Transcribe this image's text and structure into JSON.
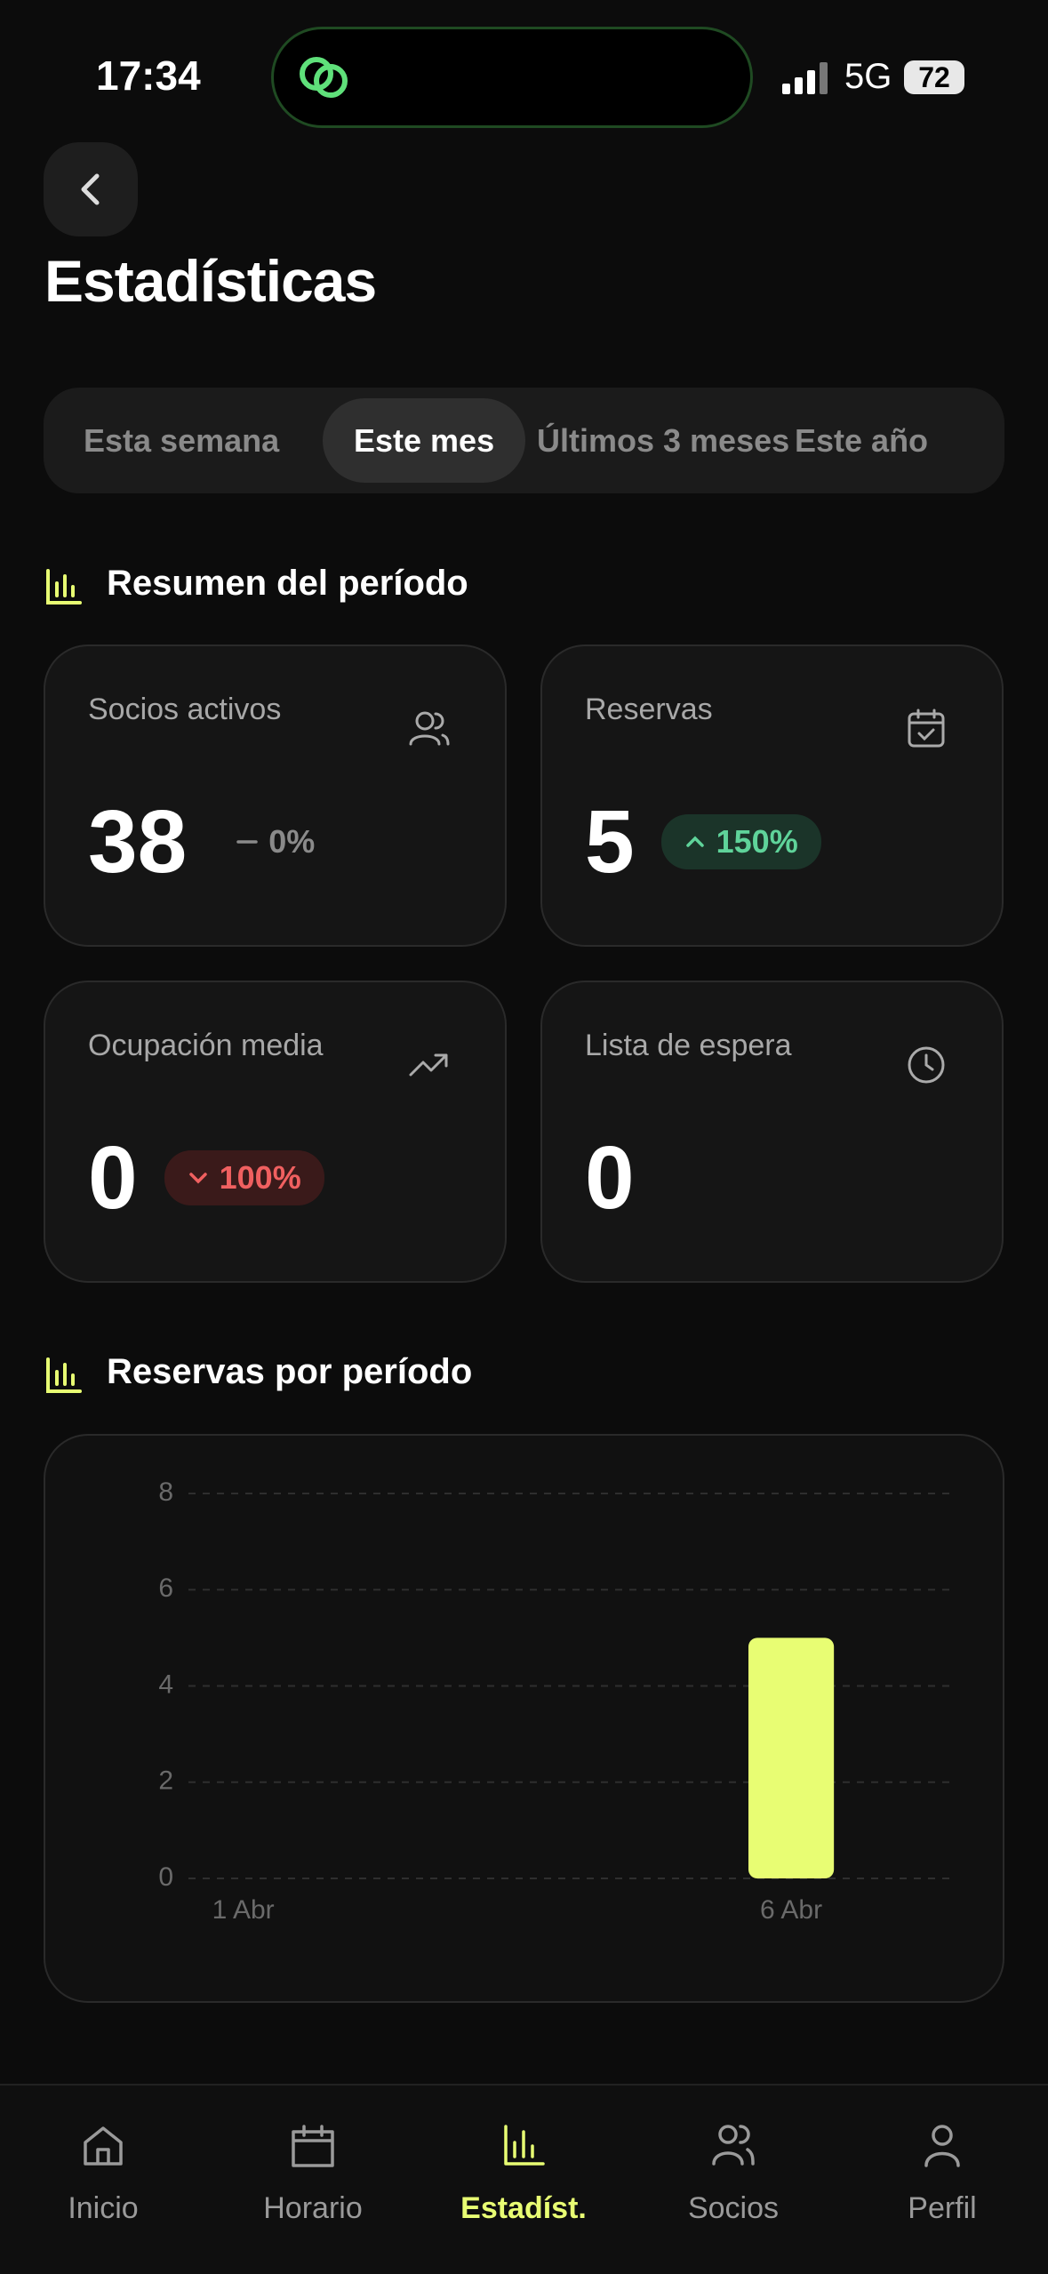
{
  "status": {
    "time": "17:34",
    "network": "5G",
    "battery": "72"
  },
  "header": {
    "title": "Estadísticas"
  },
  "tabs": {
    "items": [
      "Esta semana",
      "Este mes",
      "Últimos 3 meses",
      "Este año"
    ],
    "selected": 1
  },
  "summary": {
    "title": "Resumen del período",
    "cards": [
      {
        "label": "Socios activos",
        "value": "38",
        "change": "0%",
        "trend": "flat"
      },
      {
        "label": "Reservas",
        "value": "5",
        "change": "150%",
        "trend": "up"
      },
      {
        "label": "Ocupación media",
        "value": "0",
        "change": "100%",
        "trend": "down"
      },
      {
        "label": "Lista de espera",
        "value": "0"
      }
    ]
  },
  "chart_section": {
    "title": "Reservas por período"
  },
  "chart_data": {
    "type": "bar",
    "categories": [
      "1 Abr",
      null,
      null,
      null,
      null,
      "6 Abr",
      null
    ],
    "values": [
      0,
      0,
      0,
      0,
      0,
      5,
      0
    ],
    "color": "#e8fd73",
    "ylim": [
      0,
      8
    ],
    "yticks": [
      0,
      2,
      4,
      6,
      8
    ],
    "grid": true
  },
  "nav": {
    "items": [
      "Inicio",
      "Horario",
      "Estadíst.",
      "Socios",
      "Perfil"
    ],
    "selected": 2
  }
}
